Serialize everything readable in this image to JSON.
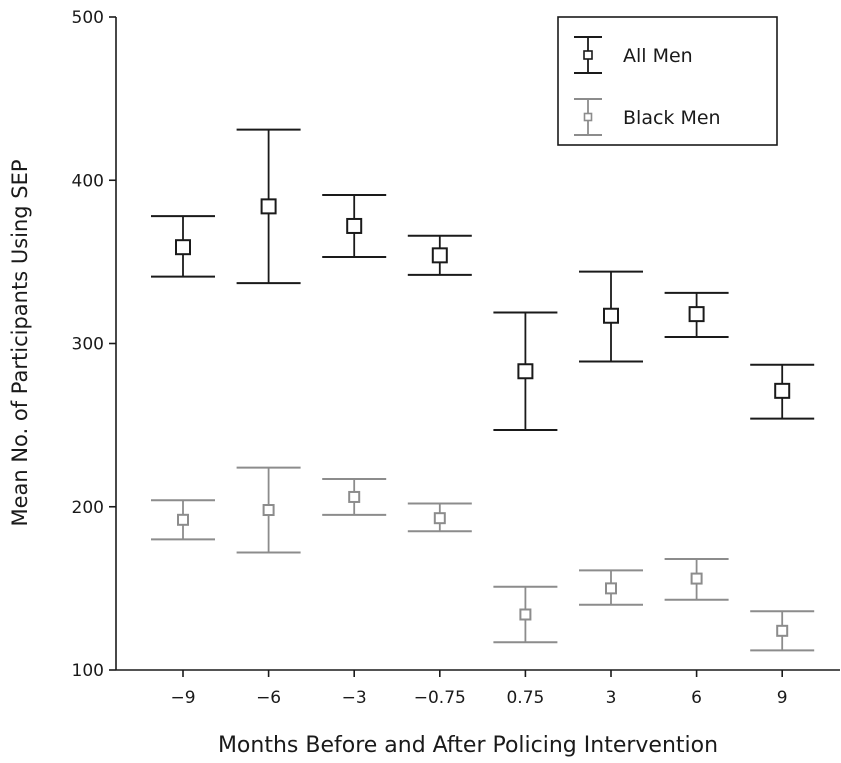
{
  "chart_data": {
    "type": "scatter",
    "subtype": "error-bar",
    "title": "",
    "xlabel": "Months Before and After Policing Intervention",
    "ylabel": "Mean No. of Participants Using SEP",
    "categories": [
      "−9",
      "−6",
      "−3",
      "−0.75",
      "0.75",
      "3",
      "6",
      "9"
    ],
    "ylim": [
      100,
      500
    ],
    "yticks": [
      "100",
      "200",
      "300",
      "400",
      "500"
    ],
    "grid": false,
    "legend_position": "top-right",
    "series": [
      {
        "name": "All Men",
        "color": "#1a1a1a",
        "marker": "open-square",
        "values": [
          359,
          384,
          372,
          354,
          283,
          317,
          318,
          271
        ],
        "upper": [
          378,
          431,
          391,
          366,
          319,
          344,
          331,
          287
        ],
        "lower": [
          341,
          337,
          353,
          342,
          247,
          289,
          304,
          254
        ]
      },
      {
        "name": "Black Men",
        "color": "#8c8c8c",
        "marker": "open-square",
        "values": [
          192,
          198,
          206,
          193,
          134,
          150,
          156,
          124
        ],
        "upper": [
          204,
          224,
          217,
          202,
          151,
          161,
          168,
          136
        ],
        "lower": [
          180,
          172,
          195,
          185,
          117,
          140,
          143,
          112
        ]
      }
    ]
  }
}
